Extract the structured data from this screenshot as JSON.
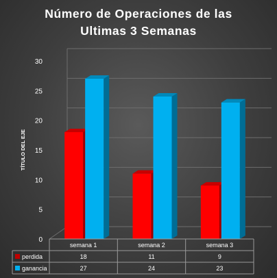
{
  "chart_data": {
    "type": "bar",
    "title_lines": [
      "Número de Operaciones de las",
      "Ultimas 3 Semanas"
    ],
    "xlabel": "",
    "ylabel": "TÍTULO DEL EJE",
    "categories": [
      "semana 1",
      "semana 2",
      "semana 3"
    ],
    "series": [
      {
        "name": "perdida",
        "values": [
          18,
          11,
          9
        ],
        "color": "#ff0000",
        "legend_marker_color": "#c00000"
      },
      {
        "name": "ganancia",
        "values": [
          27,
          24,
          23
        ],
        "color": "#00b0f0",
        "legend_marker_color": "#00b0f0"
      }
    ],
    "ylim": [
      0,
      30
    ],
    "yticks": [
      0,
      5,
      10,
      15,
      20,
      25,
      30
    ],
    "grid": true,
    "legend": "data-table",
    "bar_style": "3d"
  }
}
